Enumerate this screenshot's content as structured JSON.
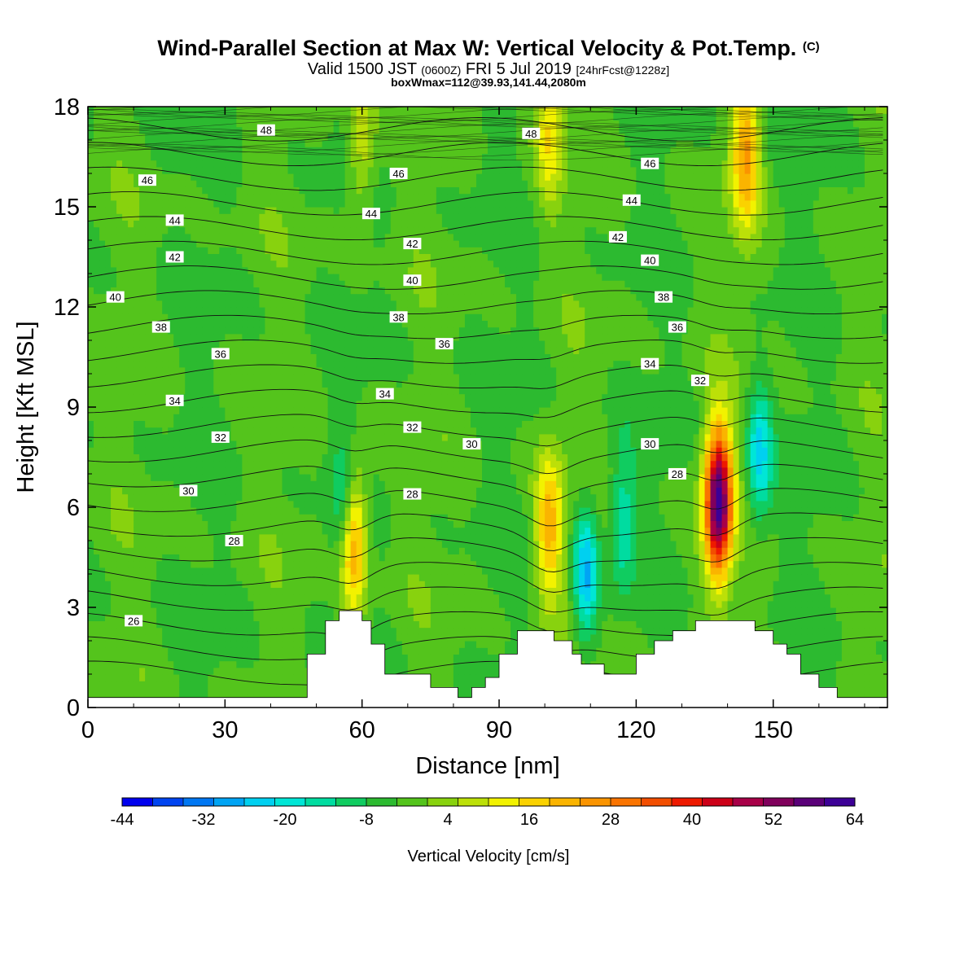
{
  "title": {
    "main": "Wind-Parallel Section at Max W: Vertical Velocity & Pot.Temp.",
    "copyright": "(C)",
    "valid_prefix": "Valid 1500 JST",
    "valid_z": "(0600Z)",
    "valid_date": "FRI 5 Jul 2019",
    "forecast": "[24hrFcst@1228z]",
    "boxwmax": "boxWmax=112@39.93,141.44,2080m"
  },
  "chart_data": {
    "type": "heatmap",
    "xlabel": "Distance [nm]",
    "ylabel": "Height [Kft MSL]",
    "xlim": [
      0,
      175
    ],
    "ylim": [
      0,
      18
    ],
    "xticks": [
      0,
      30,
      60,
      90,
      120,
      150
    ],
    "yticks": [
      0,
      3,
      6,
      9,
      12,
      15,
      18
    ],
    "colorbar": {
      "label": "Vertical Velocity [cm/s]",
      "ticks": [
        -44,
        -32,
        -20,
        -8,
        4,
        16,
        28,
        40,
        52,
        64
      ],
      "range": [
        -44,
        64
      ],
      "colors": [
        "#0000ee",
        "#0044f0",
        "#0077f2",
        "#00a4f4",
        "#00d0f0",
        "#00e6d6",
        "#00dca0",
        "#10cc60",
        "#2cba30",
        "#54c41c",
        "#88d20e",
        "#bce008",
        "#f2f200",
        "#fad200",
        "#fab400",
        "#fa9400",
        "#fa7400",
        "#f24e00",
        "#ee1a00",
        "#cc0018",
        "#a80048",
        "#80005c",
        "#5a0078",
        "#3c0096"
      ]
    },
    "terrain_profile_kft": [
      [
        0,
        0.3
      ],
      [
        48,
        0.3
      ],
      [
        48,
        1.6
      ],
      [
        52,
        1.6
      ],
      [
        52,
        2.6
      ],
      [
        55,
        2.6
      ],
      [
        55,
        2.9
      ],
      [
        60,
        2.9
      ],
      [
        60,
        2.6
      ],
      [
        62,
        2.6
      ],
      [
        62,
        1.9
      ],
      [
        65,
        1.9
      ],
      [
        65,
        1.0
      ],
      [
        75,
        1.0
      ],
      [
        75,
        0.6
      ],
      [
        81,
        0.6
      ],
      [
        81,
        0.3
      ],
      [
        84,
        0.3
      ],
      [
        84,
        0.6
      ],
      [
        87,
        0.6
      ],
      [
        87,
        0.9
      ],
      [
        90,
        0.9
      ],
      [
        90,
        1.6
      ],
      [
        94,
        1.6
      ],
      [
        94,
        2.3
      ],
      [
        102,
        2.3
      ],
      [
        102,
        2.0
      ],
      [
        106,
        2.0
      ],
      [
        106,
        1.6
      ],
      [
        108,
        1.6
      ],
      [
        108,
        1.3
      ],
      [
        113,
        1.3
      ],
      [
        113,
        1.0
      ],
      [
        120,
        1.0
      ],
      [
        120,
        1.6
      ],
      [
        124,
        1.6
      ],
      [
        124,
        2.0
      ],
      [
        128,
        2.0
      ],
      [
        128,
        2.3
      ],
      [
        133,
        2.3
      ],
      [
        133,
        2.6
      ],
      [
        146,
        2.6
      ],
      [
        146,
        2.3
      ],
      [
        150,
        2.3
      ],
      [
        150,
        1.9
      ],
      [
        153,
        1.9
      ],
      [
        153,
        1.6
      ],
      [
        156,
        1.6
      ],
      [
        156,
        1.0
      ],
      [
        160,
        1.0
      ],
      [
        160,
        0.6
      ],
      [
        164,
        0.6
      ],
      [
        164,
        0.3
      ],
      [
        175,
        0.3
      ]
    ],
    "updrafts": [
      {
        "x": 58,
        "y": 5.0,
        "wmax": 30
      },
      {
        "x": 101,
        "y": 5.4,
        "wmax": 24
      },
      {
        "x": 138,
        "y": 6.2,
        "wmax": 64
      },
      {
        "x": 144,
        "y": 16.6,
        "wmax": 26
      },
      {
        "x": 101,
        "y": 17.2,
        "wmax": 16
      },
      {
        "x": 60,
        "y": 17.0,
        "wmax": 14
      }
    ],
    "downdrafts": [
      {
        "x": 109,
        "y": 4.0,
        "wmin": -24
      },
      {
        "x": 117,
        "y": 5.6,
        "wmin": -14
      },
      {
        "x": 147,
        "y": 7.6,
        "wmin": -20
      },
      {
        "x": 56,
        "y": 6.0,
        "wmin": -14
      }
    ],
    "theta_contours": {
      "unit": "pot.temp",
      "levels": [
        26,
        27,
        28,
        29,
        30,
        31,
        32,
        33,
        34,
        35,
        36,
        37,
        38,
        39,
        40,
        41,
        42,
        43,
        44,
        45,
        46,
        47,
        48
      ],
      "labels": [
        {
          "value": "48",
          "x": 39,
          "y": 17.3
        },
        {
          "value": "48",
          "x": 97,
          "y": 17.2
        },
        {
          "value": "46",
          "x": 13,
          "y": 15.8
        },
        {
          "value": "46",
          "x": 68,
          "y": 16.0
        },
        {
          "value": "46",
          "x": 123,
          "y": 16.3
        },
        {
          "value": "44",
          "x": 19,
          "y": 14.6
        },
        {
          "value": "44",
          "x": 62,
          "y": 14.8
        },
        {
          "value": "44",
          "x": 119,
          "y": 15.2
        },
        {
          "value": "42",
          "x": 19,
          "y": 13.5
        },
        {
          "value": "42",
          "x": 71,
          "y": 13.9
        },
        {
          "value": "42",
          "x": 116,
          "y": 14.1
        },
        {
          "value": "40",
          "x": 6,
          "y": 12.3
        },
        {
          "value": "40",
          "x": 71,
          "y": 12.8
        },
        {
          "value": "40",
          "x": 123,
          "y": 13.4
        },
        {
          "value": "38",
          "x": 16,
          "y": 11.4
        },
        {
          "value": "38",
          "x": 68,
          "y": 11.7
        },
        {
          "value": "38",
          "x": 126,
          "y": 12.3
        },
        {
          "value": "36",
          "x": 29,
          "y": 10.6
        },
        {
          "value": "36",
          "x": 78,
          "y": 10.9
        },
        {
          "value": "36",
          "x": 129,
          "y": 11.4
        },
        {
          "value": "34",
          "x": 19,
          "y": 9.2
        },
        {
          "value": "34",
          "x": 65,
          "y": 9.4
        },
        {
          "value": "34",
          "x": 123,
          "y": 10.3
        },
        {
          "value": "32",
          "x": 29,
          "y": 8.1
        },
        {
          "value": "32",
          "x": 71,
          "y": 8.4
        },
        {
          "value": "32",
          "x": 134,
          "y": 9.8
        },
        {
          "value": "30",
          "x": 22,
          "y": 6.5
        },
        {
          "value": "30",
          "x": 84,
          "y": 7.9
        },
        {
          "value": "30",
          "x": 123,
          "y": 7.9
        },
        {
          "value": "28",
          "x": 32,
          "y": 5.0
        },
        {
          "value": "28",
          "x": 71,
          "y": 6.4
        },
        {
          "value": "28",
          "x": 129,
          "y": 7.0
        },
        {
          "value": "26",
          "x": 10,
          "y": 2.6
        }
      ]
    }
  }
}
